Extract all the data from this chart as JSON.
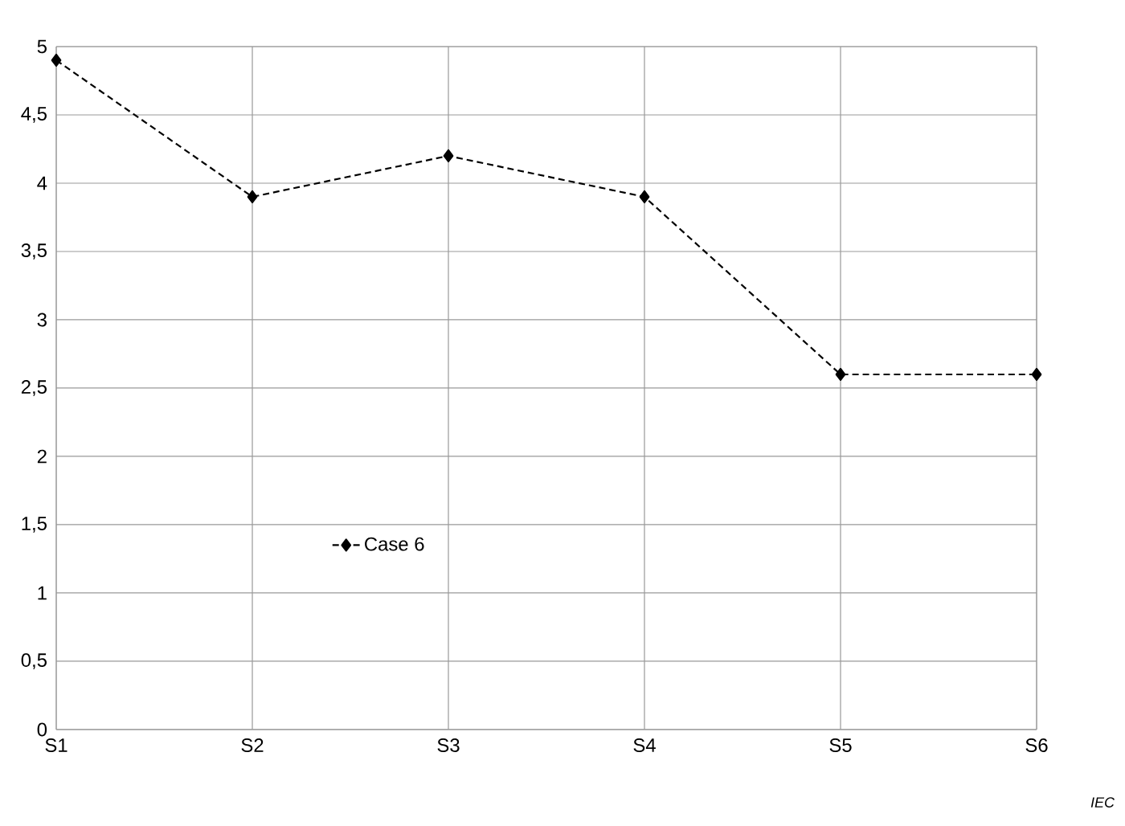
{
  "chart_data": {
    "type": "line",
    "categories": [
      "S1",
      "S2",
      "S3",
      "S4",
      "S5",
      "S6"
    ],
    "series": [
      {
        "name": "Case 6",
        "color": "#000000",
        "values": [
          4.9,
          3.9,
          4.2,
          3.9,
          2.6,
          2.6
        ]
      }
    ],
    "ylim": [
      0,
      5
    ],
    "yticks": [
      0,
      {
        "value": 0.5,
        "label": "0,5"
      },
      1,
      {
        "value": 1.5,
        "label": "1,5"
      },
      2,
      {
        "value": 2.5,
        "label": "2,5"
      },
      3,
      {
        "value": 3.5,
        "label": "3,5"
      },
      4,
      {
        "value": 4.5,
        "label": "4,5"
      },
      5
    ],
    "grid": true,
    "legend": "bottom",
    "marker": "diamond",
    "line_style": "dashed",
    "annotations": [
      "IEC"
    ]
  }
}
